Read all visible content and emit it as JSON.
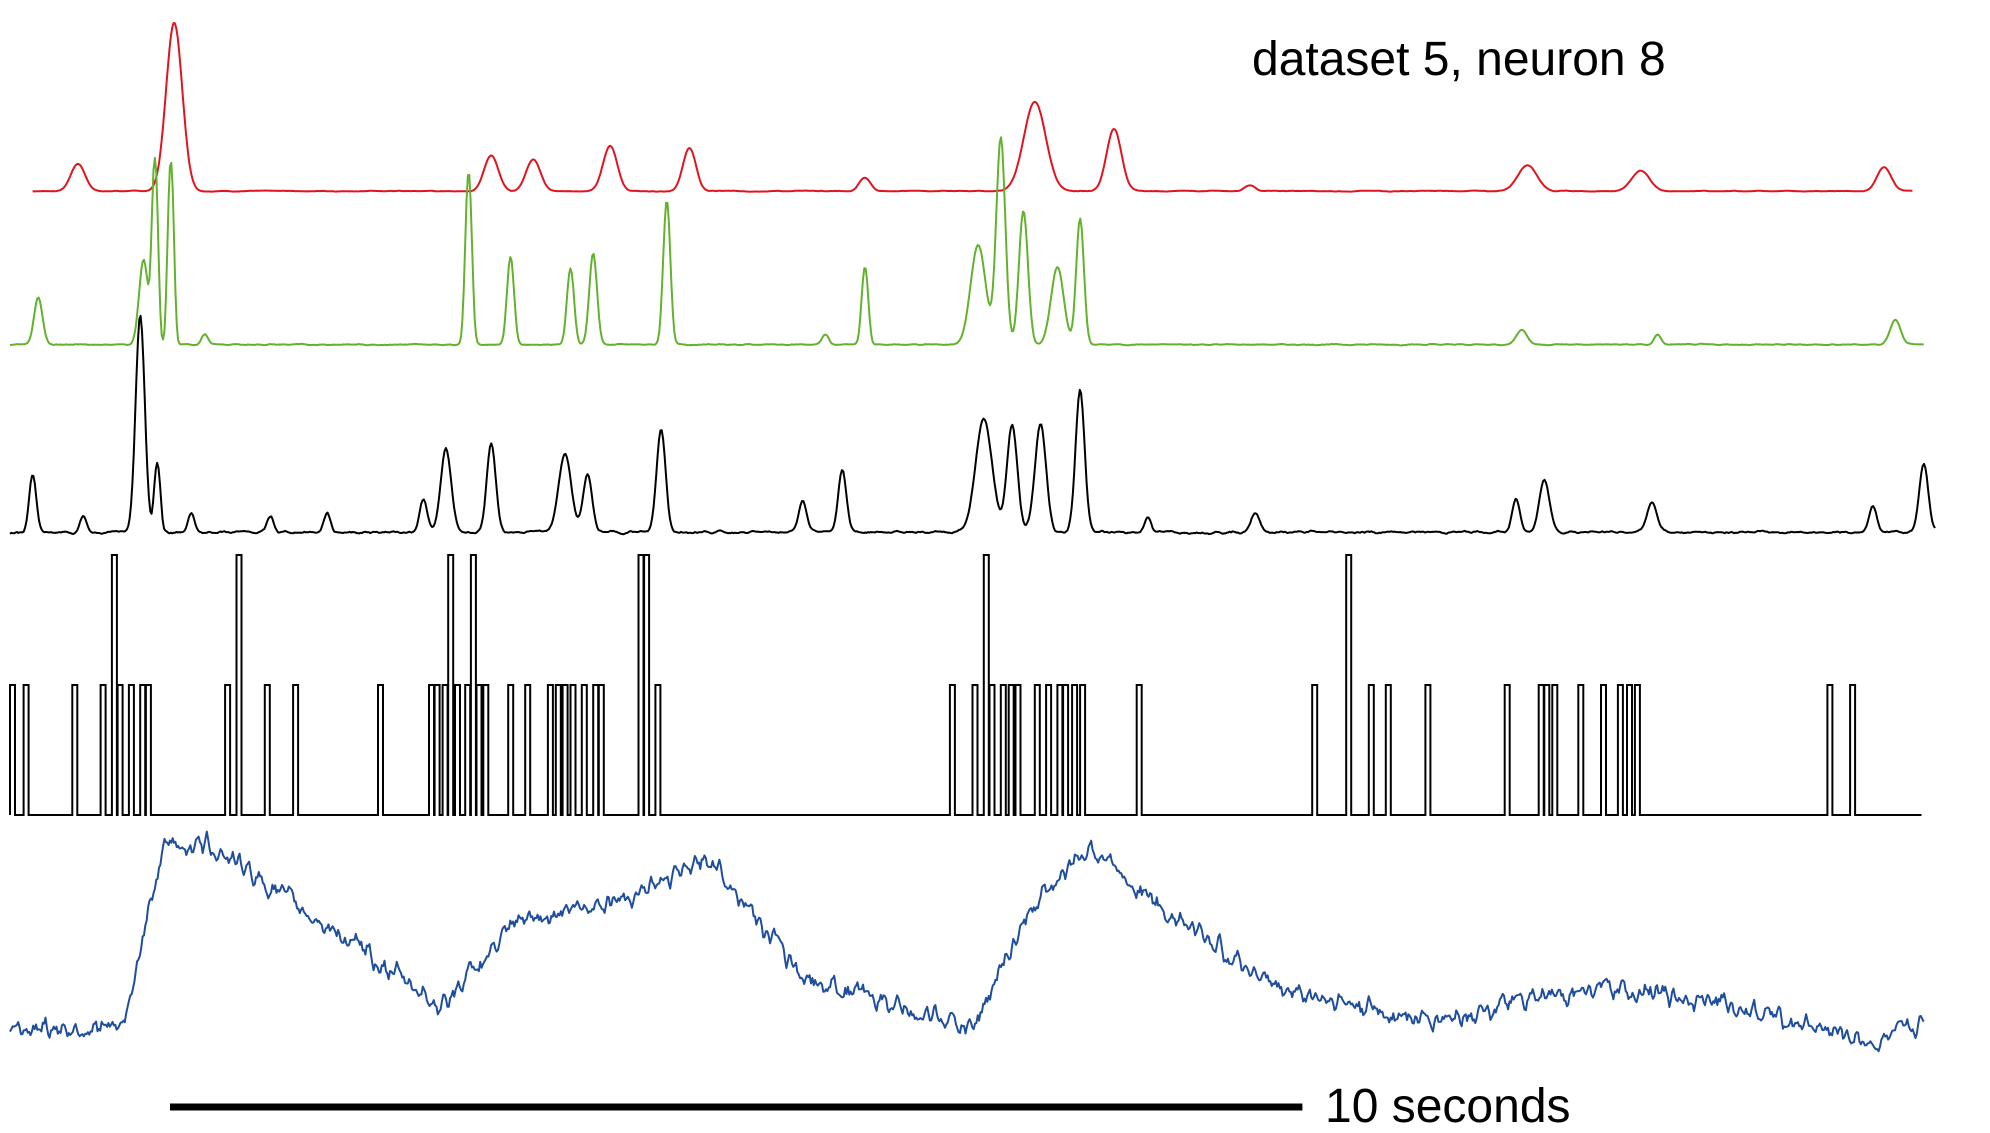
{
  "chart_data": {
    "type": "line",
    "title": "dataset 5, neuron 8",
    "duration_s": 17,
    "scale_bar": {
      "value_s": 10,
      "label": "10 seconds"
    },
    "colors": {
      "red": "#e0141e",
      "green": "#62b22e",
      "black": "#000000",
      "spikes": "#000000",
      "blue": "#1f4e9c",
      "scale_bar": "#000000"
    },
    "series": [
      {
        "key": "red",
        "color": "#e0141e",
        "range": [
          0.2,
          16.8
        ],
        "range_y": [
          0,
          1
        ],
        "noise": 0.006,
        "smooth": 4,
        "baseline": 0.005,
        "peaks": [
          [
            0.6,
            0.17,
            0.15
          ],
          [
            1.45,
            1.0,
            0.18
          ],
          [
            4.25,
            0.22,
            0.15
          ],
          [
            4.62,
            0.2,
            0.15
          ],
          [
            5.3,
            0.28,
            0.15
          ],
          [
            6.0,
            0.28,
            0.13
          ],
          [
            7.55,
            0.1,
            0.1
          ],
          [
            9.05,
            0.5,
            0.26
          ],
          [
            9.75,
            0.38,
            0.16
          ],
          [
            10.95,
            0.05,
            0.08
          ],
          [
            13.4,
            0.15,
            0.22
          ],
          [
            14.4,
            0.12,
            0.2
          ],
          [
            16.55,
            0.15,
            0.15
          ]
        ]
      },
      {
        "key": "green",
        "color": "#62b22e",
        "range": [
          0.0,
          16.9
        ],
        "range_y": [
          0,
          1
        ],
        "noise": 0.004,
        "smooth": 2,
        "baseline": 0.02,
        "peaks": [
          [
            0.25,
            0.2,
            0.09
          ],
          [
            1.18,
            0.35,
            0.1
          ],
          [
            1.28,
            1.0,
            0.05
          ],
          [
            1.42,
            1.0,
            0.05
          ],
          [
            1.72,
            0.05,
            0.06
          ],
          [
            4.05,
            0.85,
            0.06
          ],
          [
            4.42,
            0.4,
            0.07
          ],
          [
            4.95,
            0.35,
            0.07
          ],
          [
            5.15,
            0.4,
            0.08
          ],
          [
            5.8,
            0.66,
            0.07
          ],
          [
            7.2,
            0.05,
            0.06
          ],
          [
            7.55,
            0.38,
            0.06
          ],
          [
            8.75,
            0.85,
            0.1
          ],
          [
            8.55,
            0.38,
            0.18
          ],
          [
            8.95,
            0.55,
            0.1
          ],
          [
            9.45,
            0.55,
            0.08
          ],
          [
            9.25,
            0.3,
            0.15
          ],
          [
            13.35,
            0.06,
            0.12
          ],
          [
            14.55,
            0.05,
            0.06
          ],
          [
            16.65,
            0.1,
            0.12
          ]
        ]
      },
      {
        "key": "black",
        "color": "#000000",
        "range": [
          0.0,
          17.0
        ],
        "range_y": [
          0,
          1
        ],
        "noise": 0.01,
        "smooth": 2,
        "baseline": 0.05,
        "peaks": [
          [
            0.2,
            0.28,
            0.07
          ],
          [
            0.65,
            0.08,
            0.06
          ],
          [
            1.15,
            0.95,
            0.1
          ],
          [
            1.3,
            0.4,
            0.05
          ],
          [
            1.6,
            0.1,
            0.06
          ],
          [
            2.3,
            0.08,
            0.06
          ],
          [
            2.8,
            0.1,
            0.06
          ],
          [
            3.85,
            0.35,
            0.12
          ],
          [
            4.25,
            0.38,
            0.1
          ],
          [
            3.65,
            0.15,
            0.08
          ],
          [
            4.9,
            0.32,
            0.15
          ],
          [
            5.1,
            0.25,
            0.1
          ],
          [
            5.75,
            0.45,
            0.1
          ],
          [
            7.0,
            0.15,
            0.08
          ],
          [
            7.35,
            0.28,
            0.09
          ],
          [
            8.6,
            0.45,
            0.2
          ],
          [
            8.85,
            0.45,
            0.12
          ],
          [
            9.1,
            0.45,
            0.13
          ],
          [
            9.45,
            0.62,
            0.1
          ],
          [
            10.05,
            0.08,
            0.06
          ],
          [
            11.0,
            0.08,
            0.1
          ],
          [
            13.3,
            0.15,
            0.08
          ],
          [
            13.55,
            0.22,
            0.12
          ],
          [
            14.5,
            0.12,
            0.12
          ],
          [
            16.45,
            0.12,
            0.08
          ],
          [
            16.9,
            0.3,
            0.1
          ]
        ]
      },
      {
        "key": "blue",
        "color": "#1f4e9c",
        "range": [
          0.0,
          16.9
        ],
        "range_y": [
          0,
          1
        ],
        "noise": 0.07,
        "smooth": 1,
        "baseline": 0.12,
        "segments": [
          [
            0.0,
            0.12
          ],
          [
            1.0,
            0.12
          ],
          [
            1.35,
            0.93
          ],
          [
            1.75,
            0.95
          ],
          [
            2.4,
            0.72
          ],
          [
            3.8,
            0.22
          ],
          [
            4.5,
            0.6
          ],
          [
            5.5,
            0.72
          ],
          [
            6.2,
            0.88
          ],
          [
            7.0,
            0.35
          ],
          [
            8.5,
            0.12
          ],
          [
            9.05,
            0.68
          ],
          [
            9.55,
            0.94
          ],
          [
            10.2,
            0.65
          ],
          [
            11.2,
            0.3
          ],
          [
            12.5,
            0.15
          ],
          [
            14.0,
            0.3
          ],
          [
            15.0,
            0.25
          ],
          [
            16.5,
            0.05
          ],
          [
            16.9,
            0.14
          ]
        ]
      }
    ],
    "spikes": {
      "counts": [
        [
          0.0,
          1
        ],
        [
          0.12,
          1
        ],
        [
          0.55,
          1
        ],
        [
          0.8,
          1
        ],
        [
          0.9,
          2
        ],
        [
          0.95,
          1
        ],
        [
          1.05,
          1
        ],
        [
          1.15,
          1
        ],
        [
          1.2,
          1
        ],
        [
          1.9,
          1
        ],
        [
          2.0,
          2
        ],
        [
          2.25,
          1
        ],
        [
          2.5,
          1
        ],
        [
          3.25,
          1
        ],
        [
          3.7,
          1
        ],
        [
          3.75,
          1
        ],
        [
          3.82,
          1
        ],
        [
          3.87,
          2
        ],
        [
          3.93,
          1
        ],
        [
          4.02,
          1
        ],
        [
          4.07,
          2
        ],
        [
          4.12,
          1
        ],
        [
          4.18,
          1
        ],
        [
          4.4,
          1
        ],
        [
          4.55,
          1
        ],
        [
          4.75,
          1
        ],
        [
          4.82,
          1
        ],
        [
          4.88,
          1
        ],
        [
          4.95,
          1
        ],
        [
          5.05,
          1
        ],
        [
          5.15,
          1
        ],
        [
          5.2,
          1
        ],
        [
          5.55,
          2
        ],
        [
          5.6,
          2
        ],
        [
          5.7,
          1
        ],
        [
          8.3,
          1
        ],
        [
          8.5,
          1
        ],
        [
          8.6,
          2
        ],
        [
          8.65,
          1
        ],
        [
          8.75,
          1
        ],
        [
          8.82,
          1
        ],
        [
          8.88,
          1
        ],
        [
          9.05,
          1
        ],
        [
          9.15,
          1
        ],
        [
          9.25,
          1
        ],
        [
          9.3,
          1
        ],
        [
          9.38,
          1
        ],
        [
          9.45,
          1
        ],
        [
          9.95,
          1
        ],
        [
          11.5,
          1
        ],
        [
          11.8,
          2
        ],
        [
          12.0,
          1
        ],
        [
          12.15,
          1
        ],
        [
          12.5,
          1
        ],
        [
          13.2,
          1
        ],
        [
          13.5,
          1
        ],
        [
          13.55,
          1
        ],
        [
          13.62,
          1
        ],
        [
          13.85,
          1
        ],
        [
          14.05,
          1
        ],
        [
          14.2,
          1
        ],
        [
          14.28,
          1
        ],
        [
          14.35,
          1
        ],
        [
          16.05,
          1
        ],
        [
          16.25,
          1
        ]
      ],
      "ylim": [
        0,
        2
      ]
    }
  }
}
